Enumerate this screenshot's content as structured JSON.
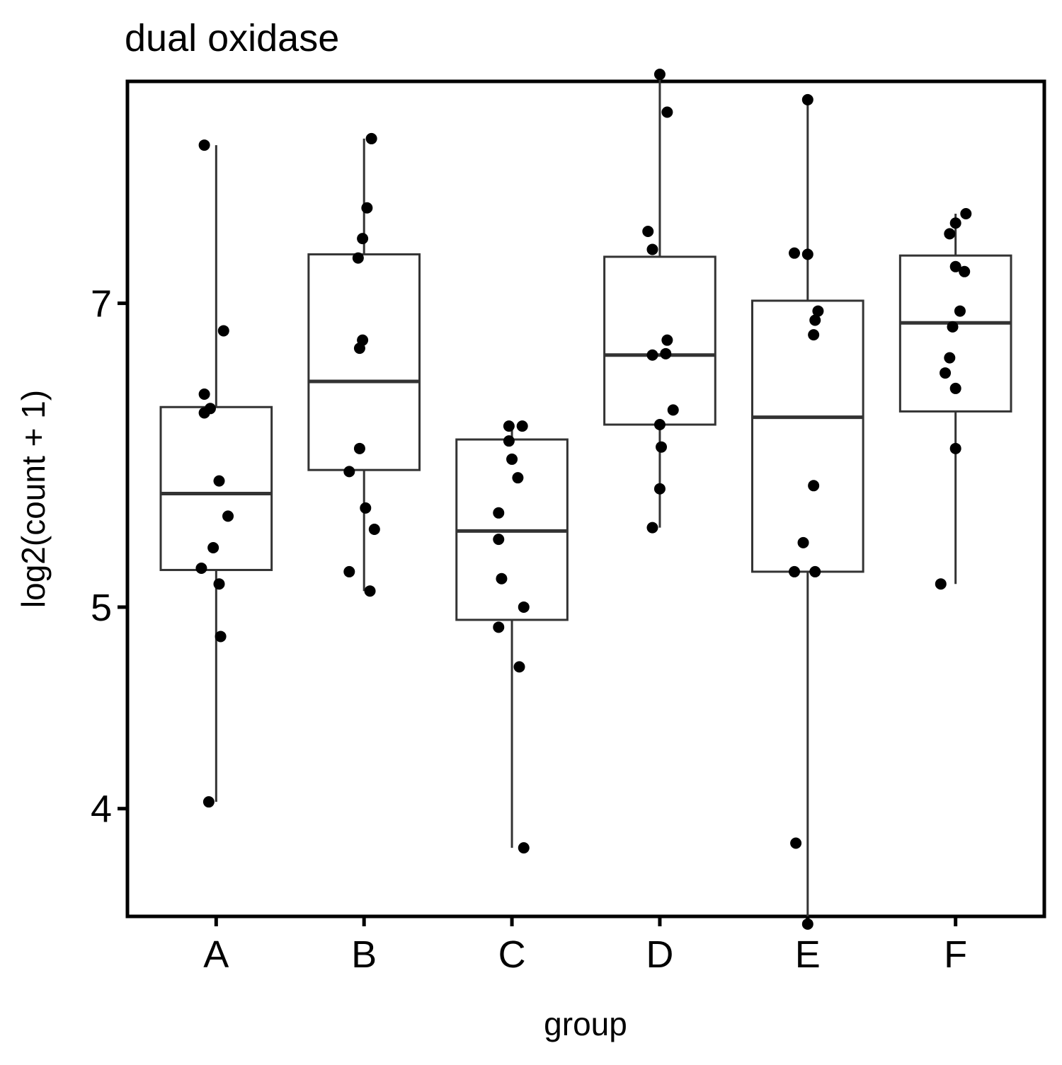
{
  "chart_data": {
    "type": "box",
    "title": "dual oxidase",
    "xlabel": "group",
    "ylabel": "log2(count + 1)",
    "categories": [
      "A",
      "B",
      "C",
      "D",
      "E",
      "F"
    ],
    "yticks": [
      4,
      5,
      7
    ],
    "y_scale": "log",
    "ylim": [
      3.55,
      8.95
    ],
    "grid": false,
    "legend": "none",
    "box_color": "#333333",
    "point_color": "#000000",
    "boxes": [
      {
        "name": "A",
        "q1": 5.21,
        "median": 5.67,
        "q3": 6.24,
        "whisker_low": 4.03,
        "whisker_high": 8.34
      },
      {
        "name": "B",
        "q1": 5.82,
        "median": 6.42,
        "q3": 7.39,
        "whisker_low": 5.09,
        "whisker_high": 8.4
      },
      {
        "name": "C",
        "q1": 4.93,
        "median": 5.44,
        "q3": 6.02,
        "whisker_low": 3.83,
        "whisker_high": 6.11
      },
      {
        "name": "D",
        "q1": 6.12,
        "median": 6.61,
        "q3": 7.37,
        "whisker_low": 5.46,
        "whisker_high": 9.02
      },
      {
        "name": "E",
        "q1": 5.2,
        "median": 6.17,
        "q3": 7.02,
        "whisker_low": 3.52,
        "whisker_high": 8.77
      },
      {
        "name": "F",
        "q1": 6.21,
        "median": 6.85,
        "q3": 7.38,
        "whisker_low": 5.13,
        "whisker_high": 7.73
      }
    ],
    "points": [
      {
        "group": "A",
        "jitter": -0.08,
        "y": 8.34
      },
      {
        "group": "A",
        "jitter": 0.05,
        "y": 6.79
      },
      {
        "group": "A",
        "jitter": -0.08,
        "y": 6.33
      },
      {
        "group": "A",
        "jitter": -0.04,
        "y": 6.23
      },
      {
        "group": "A",
        "jitter": -0.08,
        "y": 6.2
      },
      {
        "group": "A",
        "jitter": 0.02,
        "y": 5.75
      },
      {
        "group": "A",
        "jitter": 0.08,
        "y": 5.53
      },
      {
        "group": "A",
        "jitter": -0.02,
        "y": 5.34
      },
      {
        "group": "A",
        "jitter": -0.1,
        "y": 5.22
      },
      {
        "group": "A",
        "jitter": 0.02,
        "y": 5.13
      },
      {
        "group": "A",
        "jitter": 0.03,
        "y": 4.84
      },
      {
        "group": "A",
        "jitter": -0.05,
        "y": 4.03
      },
      {
        "group": "B",
        "jitter": 0.05,
        "y": 8.4
      },
      {
        "group": "B",
        "jitter": 0.02,
        "y": 7.78
      },
      {
        "group": "B",
        "jitter": -0.01,
        "y": 7.52
      },
      {
        "group": "B",
        "jitter": -0.04,
        "y": 7.36
      },
      {
        "group": "B",
        "jitter": -0.01,
        "y": 6.72
      },
      {
        "group": "B",
        "jitter": -0.03,
        "y": 6.66
      },
      {
        "group": "B",
        "jitter": -0.03,
        "y": 5.96
      },
      {
        "group": "B",
        "jitter": -0.1,
        "y": 5.81
      },
      {
        "group": "B",
        "jitter": 0.01,
        "y": 5.58
      },
      {
        "group": "B",
        "jitter": 0.07,
        "y": 5.45
      },
      {
        "group": "B",
        "jitter": -0.1,
        "y": 5.2
      },
      {
        "group": "B",
        "jitter": 0.04,
        "y": 5.09
      },
      {
        "group": "C",
        "jitter": -0.02,
        "y": 6.11
      },
      {
        "group": "C",
        "jitter": 0.07,
        "y": 6.11
      },
      {
        "group": "C",
        "jitter": -0.02,
        "y": 6.01
      },
      {
        "group": "C",
        "jitter": 0.0,
        "y": 5.89
      },
      {
        "group": "C",
        "jitter": 0.04,
        "y": 5.77
      },
      {
        "group": "C",
        "jitter": -0.09,
        "y": 5.55
      },
      {
        "group": "C",
        "jitter": -0.09,
        "y": 5.39
      },
      {
        "group": "C",
        "jitter": -0.07,
        "y": 5.16
      },
      {
        "group": "C",
        "jitter": 0.08,
        "y": 5.0
      },
      {
        "group": "C",
        "jitter": -0.09,
        "y": 4.89
      },
      {
        "group": "C",
        "jitter": 0.05,
        "y": 4.68
      },
      {
        "group": "C",
        "jitter": 0.08,
        "y": 3.83
      },
      {
        "group": "D",
        "jitter": 0.0,
        "y": 9.02
      },
      {
        "group": "D",
        "jitter": 0.05,
        "y": 8.65
      },
      {
        "group": "D",
        "jitter": -0.08,
        "y": 7.58
      },
      {
        "group": "D",
        "jitter": -0.05,
        "y": 7.43
      },
      {
        "group": "D",
        "jitter": 0.05,
        "y": 6.72
      },
      {
        "group": "D",
        "jitter": -0.05,
        "y": 6.61
      },
      {
        "group": "D",
        "jitter": 0.04,
        "y": 6.62
      },
      {
        "group": "D",
        "jitter": 0.09,
        "y": 6.22
      },
      {
        "group": "D",
        "jitter": 0.0,
        "y": 6.12
      },
      {
        "group": "D",
        "jitter": 0.01,
        "y": 5.97
      },
      {
        "group": "D",
        "jitter": 0.0,
        "y": 5.7
      },
      {
        "group": "D",
        "jitter": -0.05,
        "y": 5.46
      },
      {
        "group": "E",
        "jitter": 0.0,
        "y": 8.77
      },
      {
        "group": "E",
        "jitter": -0.09,
        "y": 7.4
      },
      {
        "group": "E",
        "jitter": 0.0,
        "y": 7.39
      },
      {
        "group": "E",
        "jitter": 0.07,
        "y": 6.94
      },
      {
        "group": "E",
        "jitter": 0.05,
        "y": 6.87
      },
      {
        "group": "E",
        "jitter": 0.04,
        "y": 6.76
      },
      {
        "group": "E",
        "jitter": 0.04,
        "y": 5.72
      },
      {
        "group": "E",
        "jitter": -0.03,
        "y": 5.37
      },
      {
        "group": "E",
        "jitter": -0.09,
        "y": 5.2
      },
      {
        "group": "E",
        "jitter": 0.05,
        "y": 5.2
      },
      {
        "group": "E",
        "jitter": -0.08,
        "y": 3.85
      },
      {
        "group": "E",
        "jitter": 0.0,
        "y": 3.52
      },
      {
        "group": "F",
        "jitter": 0.07,
        "y": 7.73
      },
      {
        "group": "F",
        "jitter": 0.0,
        "y": 7.65
      },
      {
        "group": "F",
        "jitter": -0.04,
        "y": 7.56
      },
      {
        "group": "F",
        "jitter": 0.0,
        "y": 7.29
      },
      {
        "group": "F",
        "jitter": 0.06,
        "y": 7.25
      },
      {
        "group": "F",
        "jitter": 0.03,
        "y": 6.94
      },
      {
        "group": "F",
        "jitter": -0.02,
        "y": 6.82
      },
      {
        "group": "F",
        "jitter": -0.04,
        "y": 6.59
      },
      {
        "group": "F",
        "jitter": -0.07,
        "y": 6.48
      },
      {
        "group": "F",
        "jitter": 0.0,
        "y": 6.37
      },
      {
        "group": "F",
        "jitter": 0.0,
        "y": 5.96
      },
      {
        "group": "F",
        "jitter": -0.1,
        "y": 5.13
      }
    ]
  }
}
